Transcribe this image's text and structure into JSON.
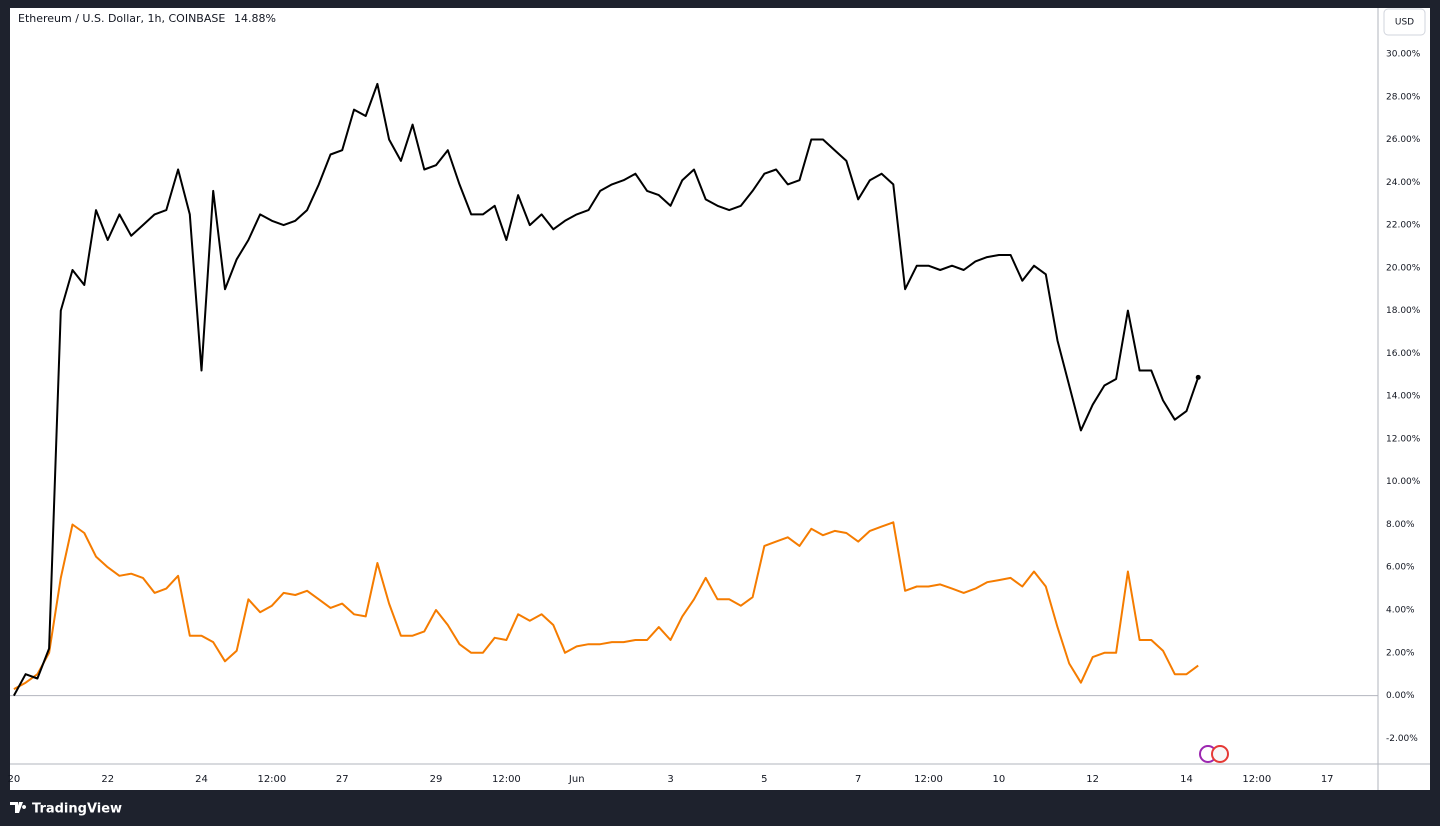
{
  "chart_data": {
    "type": "line",
    "title": "Ethereum / U.S. Dollar, 1h, COINBASE",
    "last_value_label": "14.88%",
    "x": [
      0,
      6,
      12,
      18,
      24,
      30,
      36,
      42,
      48,
      54,
      60,
      66,
      72,
      78,
      84,
      90,
      96,
      102,
      108,
      114,
      120,
      126,
      132,
      138,
      144,
      150,
      156,
      162,
      168,
      174,
      180,
      186,
      192,
      198,
      204,
      210,
      216,
      222,
      228,
      234,
      240,
      246,
      252,
      258,
      264,
      270,
      276,
      282,
      288,
      294,
      300,
      306,
      312,
      318,
      324,
      330,
      336,
      342,
      348,
      354,
      360,
      366,
      372,
      378,
      384,
      390,
      396,
      402,
      408,
      414,
      420,
      426,
      432,
      438,
      444,
      450,
      456,
      462,
      468,
      474,
      480,
      486,
      492,
      498,
      504,
      510,
      516,
      522,
      528,
      534,
      540,
      546,
      552,
      558,
      564,
      570,
      576,
      582,
      588,
      594,
      600,
      606
    ],
    "series": [
      {
        "color": "#000000",
        "values": [
          0.0,
          1.0,
          0.8,
          2.2,
          18.0,
          19.9,
          19.2,
          22.7,
          21.3,
          22.5,
          21.5,
          22.0,
          22.5,
          22.7,
          24.6,
          22.5,
          15.2,
          23.6,
          19.0,
          20.4,
          21.3,
          22.5,
          22.2,
          22.0,
          22.2,
          22.7,
          23.9,
          25.3,
          25.5,
          27.4,
          27.1,
          28.6,
          26.0,
          25.0,
          26.7,
          24.6,
          24.8,
          25.5,
          23.9,
          22.5,
          22.5,
          22.9,
          21.3,
          23.4,
          22.0,
          22.5,
          21.8,
          22.2,
          22.5,
          22.7,
          23.6,
          23.9,
          24.1,
          24.4,
          23.6,
          23.4,
          22.9,
          24.1,
          24.6,
          23.2,
          22.9,
          22.7,
          22.9,
          23.6,
          24.4,
          24.6,
          23.9,
          24.1,
          26.0,
          26.0,
          25.5,
          25.0,
          23.2,
          24.1,
          24.4,
          23.9,
          19.0,
          20.1,
          20.1,
          19.9,
          20.1,
          19.9,
          20.3,
          20.5,
          20.6,
          20.6,
          19.4,
          20.1,
          19.7,
          16.6,
          14.5,
          12.4,
          13.6,
          14.5,
          14.8,
          18.0,
          15.2,
          15.2,
          13.8,
          12.9,
          13.3,
          14.88
        ]
      },
      {
        "color": "#f57c00",
        "values": [
          0.3,
          0.6,
          1.0,
          2.0,
          5.5,
          8.0,
          7.6,
          6.5,
          6.0,
          5.6,
          5.7,
          5.5,
          4.8,
          5.0,
          5.6,
          2.8,
          2.8,
          2.5,
          1.6,
          2.1,
          4.5,
          3.9,
          4.2,
          4.8,
          4.7,
          4.9,
          4.5,
          4.1,
          4.3,
          3.8,
          3.7,
          6.2,
          4.3,
          2.8,
          2.8,
          3.0,
          4.0,
          3.3,
          2.4,
          2.0,
          2.0,
          2.7,
          2.6,
          3.8,
          3.5,
          3.8,
          3.3,
          2.0,
          2.3,
          2.4,
          2.4,
          2.5,
          2.5,
          2.6,
          2.6,
          3.2,
          2.6,
          3.7,
          4.5,
          5.5,
          4.5,
          4.5,
          4.2,
          4.6,
          7.0,
          7.2,
          7.4,
          7.0,
          7.8,
          7.5,
          7.7,
          7.6,
          7.2,
          7.7,
          7.9,
          8.1,
          4.9,
          5.1,
          5.1,
          5.2,
          5.0,
          4.8,
          5.0,
          5.3,
          5.4,
          5.5,
          5.1,
          5.8,
          5.1,
          3.2,
          1.5,
          0.6,
          1.8,
          2.0,
          2.0,
          5.8,
          2.6,
          2.6,
          2.1,
          1.0,
          1.0,
          1.4
        ]
      }
    ],
    "xlim": [
      -2,
      698
    ],
    "xticks": [
      {
        "value": 0,
        "label": "20"
      },
      {
        "value": 48,
        "label": "22"
      },
      {
        "value": 96,
        "label": "24"
      },
      {
        "value": 132,
        "label": "12:00"
      },
      {
        "value": 168,
        "label": "27"
      },
      {
        "value": 216,
        "label": "29"
      },
      {
        "value": 252,
        "label": "12:00"
      },
      {
        "value": 288,
        "label": "Jun"
      },
      {
        "value": 336,
        "label": "3"
      },
      {
        "value": 384,
        "label": "5"
      },
      {
        "value": 432,
        "label": "7"
      },
      {
        "value": 468,
        "label": "12:00"
      },
      {
        "value": 504,
        "label": "10"
      },
      {
        "value": 552,
        "label": "12"
      },
      {
        "value": 600,
        "label": "14"
      },
      {
        "value": 636,
        "label": "12:00"
      },
      {
        "value": 672,
        "label": "17"
      }
    ],
    "ylim": [
      -3.2,
      32.15
    ],
    "yticks": [
      {
        "value": -2,
        "label": "-2.00%"
      },
      {
        "value": 0,
        "label": "0.00%"
      },
      {
        "value": 2,
        "label": "2.00%"
      },
      {
        "value": 4,
        "label": "4.00%"
      },
      {
        "value": 6,
        "label": "6.00%"
      },
      {
        "value": 8,
        "label": "8.00%"
      },
      {
        "value": 10,
        "label": "10.00%"
      },
      {
        "value": 12,
        "label": "12.00%"
      },
      {
        "value": 14,
        "label": "14.00%"
      },
      {
        "value": 16,
        "label": "16.00%"
      },
      {
        "value": 18,
        "label": "18.00%"
      },
      {
        "value": 20,
        "label": "20.00%"
      },
      {
        "value": 22,
        "label": "22.00%"
      },
      {
        "value": 24,
        "label": "24.00%"
      },
      {
        "value": 26,
        "label": "26.00%"
      },
      {
        "value": 28,
        "label": "28.00%"
      },
      {
        "value": 30,
        "label": "30.00%"
      }
    ],
    "zero_line": true,
    "grid": false
  },
  "toolbar": {
    "currency": "USD"
  },
  "footer": {
    "brand": "TradingView"
  }
}
